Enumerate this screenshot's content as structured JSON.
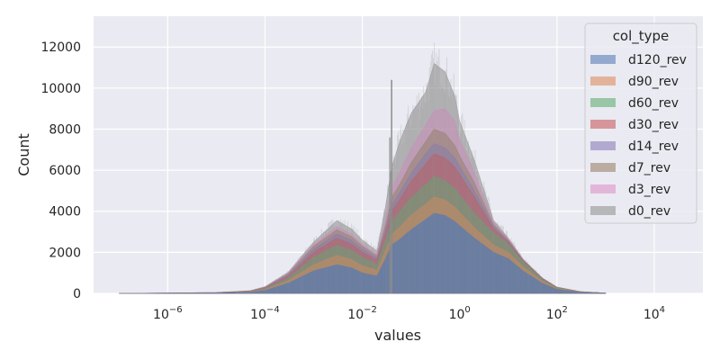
{
  "chart_data": {
    "type": "area",
    "title": "",
    "xlabel": "values",
    "ylabel": "Count",
    "x_scale": "log",
    "x_ticks": [
      1e-06,
      0.0001,
      0.01,
      1,
      100,
      10000
    ],
    "x_tick_labels": [
      {
        "base": "10",
        "exp": "−6"
      },
      {
        "base": "10",
        "exp": "−4"
      },
      {
        "base": "10",
        "exp": "−2"
      },
      {
        "base": "10",
        "exp": "0"
      },
      {
        "base": "10",
        "exp": "2"
      },
      {
        "base": "10",
        "exp": "4"
      }
    ],
    "xlim": [
      3e-08,
      100000
    ],
    "ylim": [
      0,
      13500
    ],
    "y_ticks": [
      0,
      2000,
      4000,
      6000,
      8000,
      10000,
      12000
    ],
    "y_tick_labels": [
      "0",
      "2000",
      "4000",
      "6000",
      "8000",
      "10000",
      "12000"
    ],
    "grid": true,
    "stacked": true,
    "legend": {
      "title": "col_type",
      "position": "top-right"
    },
    "x": [
      1e-07,
      1e-05,
      5e-05,
      0.0001,
      0.0003,
      0.001,
      0.003,
      0.006,
      0.01,
      0.02,
      0.03,
      0.04,
      0.06,
      0.1,
      0.2,
      0.3,
      0.5,
      0.8,
      1,
      2,
      5,
      10,
      20,
      50,
      100,
      300,
      1000
    ],
    "series": [
      {
        "name": "d120_rev",
        "color": "#4c72b0",
        "values": [
          0,
          20,
          60,
          150,
          500,
          1100,
          1400,
          1250,
          1000,
          850,
          1700,
          2350,
          2650,
          3100,
          3600,
          3900,
          3800,
          3500,
          3300,
          2700,
          2000,
          1700,
          1100,
          500,
          200,
          60,
          10
        ]
      },
      {
        "name": "d90_rev",
        "color": "#dd8452",
        "values": [
          0,
          5,
          15,
          40,
          120,
          300,
          450,
          400,
          350,
          280,
          400,
          500,
          600,
          700,
          750,
          800,
          750,
          700,
          650,
          500,
          350,
          300,
          200,
          100,
          40,
          10,
          2
        ]
      },
      {
        "name": "d60_rev",
        "color": "#55a868",
        "values": [
          0,
          5,
          15,
          40,
          120,
          350,
          500,
          450,
          400,
          300,
          500,
          650,
          750,
          850,
          950,
          1000,
          950,
          900,
          850,
          700,
          600,
          400,
          250,
          100,
          40,
          10,
          2
        ]
      },
      {
        "name": "d30_rev",
        "color": "#c44e52",
        "values": [
          0,
          5,
          15,
          35,
          100,
          250,
          350,
          300,
          250,
          200,
          350,
          500,
          600,
          800,
          1000,
          1100,
          1100,
          1050,
          1000,
          800,
          200,
          100,
          50,
          20,
          10,
          3,
          1
        ]
      },
      {
        "name": "d14_rev",
        "color": "#8172b3",
        "values": [
          0,
          3,
          10,
          20,
          60,
          150,
          200,
          180,
          150,
          100,
          200,
          300,
          350,
          400,
          500,
          500,
          500,
          450,
          400,
          300,
          100,
          50,
          20,
          10,
          5,
          2,
          0
        ]
      },
      {
        "name": "d7_rev",
        "color": "#937860",
        "values": [
          0,
          3,
          10,
          20,
          60,
          150,
          200,
          180,
          150,
          100,
          200,
          350,
          400,
          500,
          600,
          700,
          700,
          600,
          500,
          400,
          100,
          50,
          20,
          10,
          5,
          2,
          0
        ]
      },
      {
        "name": "d3_rev",
        "color": "#da8bc3",
        "values": [
          0,
          2,
          8,
          15,
          40,
          100,
          150,
          130,
          100,
          80,
          300,
          500,
          600,
          700,
          800,
          900,
          1200,
          1200,
          800,
          500,
          100,
          50,
          20,
          10,
          5,
          2,
          0
        ]
      },
      {
        "name": "d0_rev",
        "color": "#8c8c8c",
        "values": [
          0,
          2,
          5,
          10,
          30,
          100,
          300,
          250,
          200,
          150,
          600,
          1000,
          1500,
          1700,
          1600,
          2300,
          1800,
          1200,
          900,
          600,
          100,
          50,
          20,
          10,
          5,
          2,
          0
        ]
      }
    ]
  }
}
